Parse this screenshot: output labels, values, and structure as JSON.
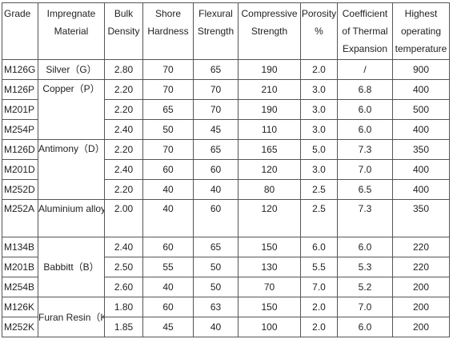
{
  "headers": [
    "Grade",
    "Impregnate Material",
    "Bulk Density",
    "Shore Hardness",
    "Flexural Strength",
    "Compressive Strength",
    "Porosity %",
    "Coefficient of Thermal Expansion",
    "Highest operating temperature"
  ],
  "rows": [
    {
      "grade": "M126G",
      "material": "Silver（G）",
      "density": "2.80",
      "hardness": "70",
      "flexural": "65",
      "compressive": "190",
      "porosity": "2.0",
      "expansion": "/",
      "temp": "900"
    },
    {
      "grade": "M126P",
      "material": "Copper（P）",
      "density": "2.20",
      "hardness": "70",
      "flexural": "70",
      "compressive": "210",
      "porosity": "3.0",
      "expansion": "6.8",
      "temp": "400"
    },
    {
      "grade": "M201P",
      "density": "2.20",
      "hardness": "65",
      "flexural": "70",
      "compressive": "190",
      "porosity": "3.0",
      "expansion": "6.0",
      "temp": "500"
    },
    {
      "grade": "M254P",
      "density": "2.40",
      "hardness": "50",
      "flexural": "45",
      "compressive": "110",
      "porosity": "3.0",
      "expansion": "6.0",
      "temp": "400"
    },
    {
      "grade": "M126D",
      "material": "Antimony（D）",
      "density": "2.20",
      "hardness": "70",
      "flexural": "65",
      "compressive": "165",
      "porosity": "5.0",
      "expansion": "7.3",
      "temp": "350"
    },
    {
      "grade": "M201D",
      "density": "2.40",
      "hardness": "60",
      "flexural": "60",
      "compressive": "120",
      "porosity": "3.0",
      "expansion": "7.0",
      "temp": "400"
    },
    {
      "grade": "M252D",
      "density": "2.20",
      "hardness": "40",
      "flexural": "40",
      "compressive": "80",
      "porosity": "2.5",
      "expansion": "6.5",
      "temp": "400"
    },
    {
      "grade": "M252A",
      "material": "Aluminium alloy（A）",
      "density": "2.00",
      "hardness": "40",
      "flexural": "60",
      "compressive": "120",
      "porosity": "2.5",
      "expansion": "7.3",
      "temp": "350"
    },
    {
      "grade": "M134B",
      "material": "Babbitt（B）",
      "density": "2.40",
      "hardness": "60",
      "flexural": "65",
      "compressive": "150",
      "porosity": "6.0",
      "expansion": "6.0",
      "temp": "220"
    },
    {
      "grade": "M201B",
      "density": "2.50",
      "hardness": "55",
      "flexural": "50",
      "compressive": "130",
      "porosity": "5.5",
      "expansion": "5.3",
      "temp": "220"
    },
    {
      "grade": "M254B",
      "density": "2.60",
      "hardness": "40",
      "flexural": "50",
      "compressive": "70",
      "porosity": "7.0",
      "expansion": "5.2",
      "temp": "200"
    },
    {
      "grade": "M126K",
      "material": "Furan Resin（K）",
      "density": "1.80",
      "hardness": "60",
      "flexural": "63",
      "compressive": "150",
      "porosity": "2.0",
      "expansion": "7.0",
      "temp": "200"
    },
    {
      "grade": "M252K",
      "density": "1.85",
      "hardness": "45",
      "flexural": "40",
      "compressive": "100",
      "porosity": "2.0",
      "expansion": "6.0",
      "temp": "200"
    }
  ]
}
